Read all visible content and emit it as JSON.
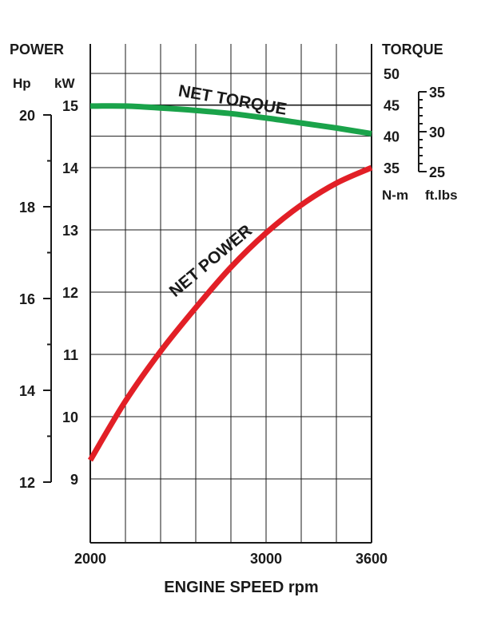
{
  "chart_data": {
    "type": "line",
    "xlabel": "ENGINE SPEED rpm",
    "x_tick_labels": [
      "2000",
      "3000",
      "3600"
    ],
    "x_ticks": [
      2000,
      3000,
      3600
    ],
    "xlim": [
      2000,
      3600
    ],
    "left_axis": {
      "title": "POWER",
      "hp": {
        "unit": "Hp",
        "ticks": [
          12,
          14,
          16,
          18,
          20
        ],
        "tick_labels": [
          "12",
          "14",
          "16",
          "18",
          "20"
        ]
      },
      "kw": {
        "unit": "kW",
        "ticks": [
          9,
          10,
          11,
          12,
          13,
          14,
          15
        ],
        "tick_labels": [
          "9",
          "10",
          "11",
          "12",
          "13",
          "14",
          "15"
        ],
        "ylim": [
          8,
          15.6
        ]
      }
    },
    "right_axis": {
      "title": "TORQUE",
      "nm": {
        "unit": "N-m",
        "ticks": [
          35,
          40,
          45,
          50
        ],
        "tick_labels": [
          "35",
          "40",
          "45",
          "50"
        ]
      },
      "ftlbs": {
        "unit": "ft.lbs",
        "ticks": [
          25,
          30,
          35
        ],
        "tick_labels": [
          "25",
          "30",
          "35"
        ]
      }
    },
    "grid": true,
    "series": [
      {
        "name": "NET TORQUE",
        "axis": "N-m",
        "color": "#1aa34a",
        "x": [
          2000,
          2200,
          2400,
          2600,
          2800,
          3000,
          3200,
          3400,
          3600
        ],
        "y": [
          44.8,
          44.8,
          44.5,
          44.1,
          43.6,
          42.9,
          42.1,
          41.3,
          40.4
        ]
      },
      {
        "name": "NET POWER",
        "axis": "kW",
        "color": "#e21f26",
        "x": [
          2000,
          2200,
          2400,
          2600,
          2800,
          3000,
          3200,
          3400,
          3600
        ],
        "y": [
          9.3,
          10.25,
          11.05,
          11.75,
          12.4,
          12.95,
          13.4,
          13.75,
          14.0
        ]
      }
    ]
  }
}
